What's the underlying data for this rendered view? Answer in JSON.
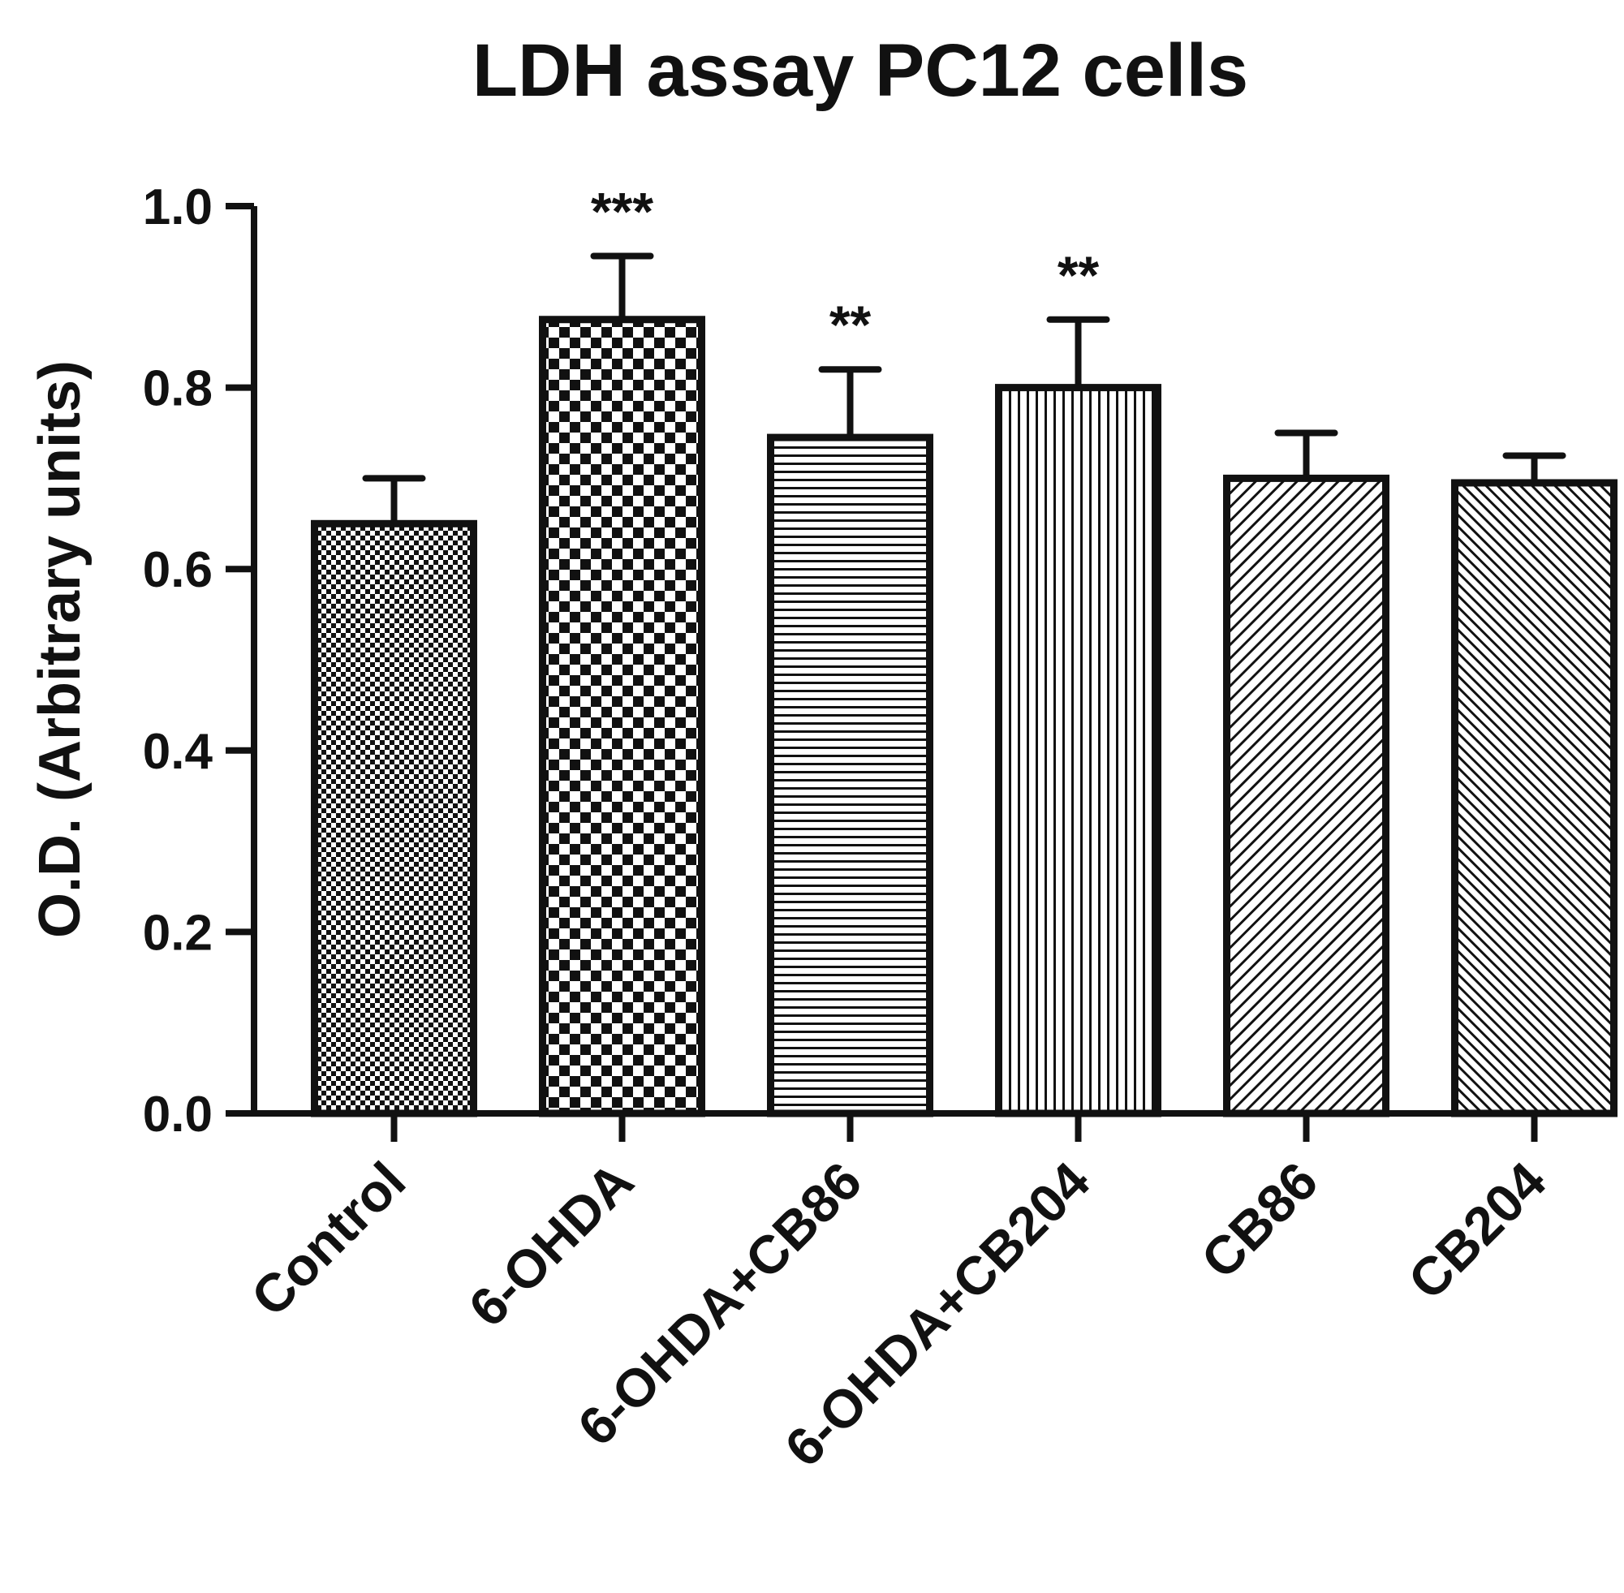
{
  "chart_data": {
    "type": "bar",
    "title": "LDH assay PC12 cells",
    "ylabel": "O.D. (Arbitrary units)",
    "xlabel": "",
    "ylim": [
      0,
      1.0
    ],
    "yticks": [
      "0.0",
      "0.2",
      "0.4",
      "0.6",
      "0.8",
      "1.0"
    ],
    "grid": false,
    "categories": [
      "Control",
      "6-OHDA",
      "6-OHDA+CB86",
      "6-OHDA+CB204",
      "CB86",
      "CB204"
    ],
    "values": [
      0.65,
      0.875,
      0.745,
      0.8,
      0.7,
      0.695
    ],
    "errors": [
      0.05,
      0.07,
      0.075,
      0.075,
      0.05,
      0.03
    ],
    "significance": [
      "",
      "***",
      "**",
      "**",
      "",
      ""
    ],
    "patterns": [
      "fine-checker",
      "checker",
      "horizontal-lines",
      "vertical-lines",
      "diagonal-lines",
      "diagonal-lines-dense"
    ],
    "colors": {
      "ink": "#111111",
      "background": "#ffffff"
    }
  }
}
